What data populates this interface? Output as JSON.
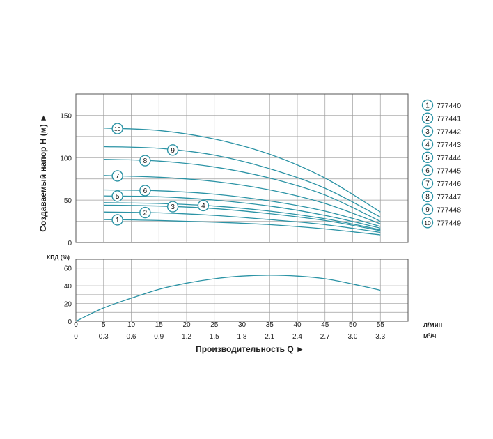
{
  "chart_data": [
    {
      "type": "line",
      "name": "head-curves",
      "ylabel": "Создаваемый напор H (м) ►",
      "ylim": [
        0,
        175
      ],
      "yticks": [
        0,
        50,
        100,
        150
      ],
      "xlim": [
        0,
        60
      ],
      "grid": true,
      "legend_placement": "right",
      "series": [
        {
          "name": "777440",
          "marker": "1",
          "x": [
            5,
            15,
            25,
            35,
            45,
            55
          ],
          "y": [
            27,
            26,
            24,
            21,
            16,
            9
          ]
        },
        {
          "name": "777441",
          "marker": "2",
          "x": [
            5,
            15,
            25,
            35,
            45,
            55
          ],
          "y": [
            36,
            35,
            32,
            27,
            21,
            12
          ]
        },
        {
          "name": "777442",
          "marker": "3",
          "x": [
            5,
            15,
            25,
            35,
            45,
            55
          ],
          "y": [
            44,
            43,
            40,
            34,
            26,
            14
          ]
        },
        {
          "name": "777443",
          "marker": "4",
          "x": [
            5,
            15,
            25,
            35,
            45,
            55
          ],
          "y": [
            47,
            46,
            43,
            37,
            28,
            15
          ]
        },
        {
          "name": "777444",
          "marker": "5",
          "x": [
            5,
            15,
            25,
            35,
            45,
            55
          ],
          "y": [
            55,
            54,
            50,
            43,
            32,
            17
          ]
        },
        {
          "name": "777445",
          "marker": "6",
          "x": [
            5,
            15,
            25,
            35,
            45,
            55
          ],
          "y": [
            62,
            61,
            57,
            49,
            37,
            19
          ]
        },
        {
          "name": "777446",
          "marker": "7",
          "x": [
            5,
            15,
            25,
            35,
            45,
            55
          ],
          "y": [
            79,
            77,
            72,
            62,
            46,
            22
          ]
        },
        {
          "name": "777447",
          "marker": "8",
          "x": [
            5,
            15,
            25,
            35,
            45,
            55
          ],
          "y": [
            98,
            96,
            89,
            76,
            56,
            25
          ]
        },
        {
          "name": "777448",
          "marker": "9",
          "x": [
            5,
            15,
            25,
            35,
            45,
            55
          ],
          "y": [
            113,
            111,
            103,
            87,
            64,
            30
          ]
        },
        {
          "name": "777449",
          "marker": "10",
          "x": [
            5,
            15,
            25,
            35,
            45,
            55
          ],
          "y": [
            135,
            132,
            122,
            104,
            76,
            36
          ]
        }
      ]
    },
    {
      "type": "line",
      "name": "efficiency-curve",
      "ylabel": "КПД (%)",
      "ylim": [
        0,
        70
      ],
      "yticks": [
        0,
        20,
        40,
        60
      ],
      "xlim": [
        0,
        60
      ],
      "grid": true,
      "x_label_primary": "Производительность Q ►",
      "x_unit_primary": "л/мин",
      "x_unit_secondary": "м³/ч",
      "xticks_primary": [
        "0",
        "5",
        "10",
        "15",
        "20",
        "25",
        "30",
        "35",
        "40",
        "45",
        "50",
        "55"
      ],
      "xticks_primary_values": [
        0,
        5,
        10,
        15,
        20,
        25,
        30,
        35,
        40,
        45,
        50,
        55
      ],
      "xticks_secondary": [
        "0",
        "0.3",
        "0.6",
        "0.9",
        "1.2",
        "1.5",
        "1.8",
        "2.1",
        "2.4",
        "2.7",
        "3.0",
        "3.3"
      ],
      "series": [
        {
          "x": [
            0,
            5,
            10,
            15,
            20,
            25,
            30,
            35,
            40,
            45,
            50,
            55
          ],
          "y": [
            0,
            15,
            26,
            36,
            43,
            48,
            51,
            52,
            51,
            48,
            42,
            35
          ]
        }
      ]
    }
  ],
  "colors": {
    "curve": "#2b93a5",
    "grid": "#9e9e9e",
    "text": "#222222",
    "frame": "#555555"
  }
}
